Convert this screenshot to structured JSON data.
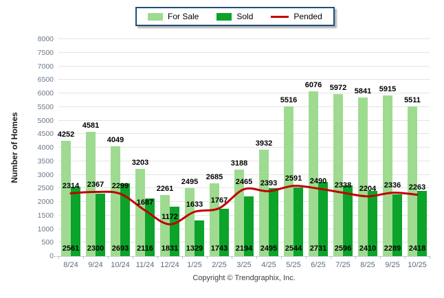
{
  "legend": {
    "items": [
      {
        "label": "For Sale",
        "swatch": "bar",
        "color": "#9edb90"
      },
      {
        "label": "Sold",
        "swatch": "bar",
        "color": "#0ca32b"
      },
      {
        "label": "Pended",
        "swatch": "line",
        "color": "#c00000"
      }
    ]
  },
  "chart_data": {
    "type": "bar",
    "categories": [
      "8/24",
      "9/24",
      "10/24",
      "11/24",
      "12/24",
      "1/25",
      "2/25",
      "3/25",
      "4/25",
      "5/25",
      "6/25",
      "7/25",
      "8/25",
      "9/25",
      "10/25"
    ],
    "series": [
      {
        "name": "For Sale",
        "type": "bar",
        "color": "#9edb90",
        "values": [
          4252,
          4581,
          4049,
          3203,
          2261,
          2495,
          2685,
          3188,
          3932,
          5516,
          6076,
          5972,
          5841,
          5915,
          5511
        ]
      },
      {
        "name": "Sold",
        "type": "bar",
        "color": "#0ca32b",
        "values": [
          2561,
          2300,
          2693,
          2116,
          1831,
          1329,
          1743,
          2194,
          2495,
          2544,
          2731,
          2596,
          2410,
          2289,
          2418
        ]
      },
      {
        "name": "Pended",
        "type": "line",
        "color": "#c00000",
        "values": [
          2314,
          2367,
          2299,
          1687,
          1172,
          1633,
          1767,
          2465,
          2393,
          2591,
          2490,
          2338,
          2204,
          2336,
          2263
        ]
      }
    ],
    "title": "",
    "xlabel": "",
    "ylabel": "Number of Homes",
    "ylim": [
      0,
      8000
    ],
    "ytick_step": 500,
    "yticks": [
      0,
      500,
      1000,
      1500,
      2000,
      2500,
      3000,
      3500,
      4000,
      4500,
      5000,
      5500,
      6000,
      6500,
      7000,
      7500,
      8000
    ],
    "grid": true,
    "legend_position": "top-center"
  },
  "footer": {
    "copyright": "Copyright © Trendgraphix, Inc."
  }
}
